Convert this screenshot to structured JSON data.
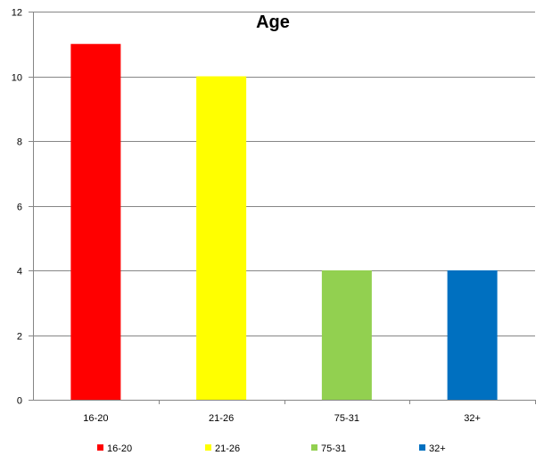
{
  "chart_data": {
    "type": "bar",
    "title": "Age",
    "categories": [
      "16-20",
      "21-26",
      "75-31",
      "32+"
    ],
    "values": [
      11,
      10,
      4,
      4
    ],
    "colors": [
      "#ff0000",
      "#ffff00",
      "#92d050",
      "#0070c0"
    ],
    "ylim": [
      0,
      12
    ],
    "yticks": [
      0,
      2,
      4,
      6,
      8,
      10,
      12
    ],
    "ytick_labels": [
      "0",
      "2",
      "4",
      "6",
      "8",
      "10",
      "12"
    ],
    "grid": true,
    "legend_position": "bottom",
    "legend": [
      {
        "label": "16-20",
        "color": "#ff0000"
      },
      {
        "label": "21-26",
        "color": "#ffff00"
      },
      {
        "label": "75-31",
        "color": "#92d050"
      },
      {
        "label": "32+",
        "color": "#0070c0"
      }
    ]
  }
}
